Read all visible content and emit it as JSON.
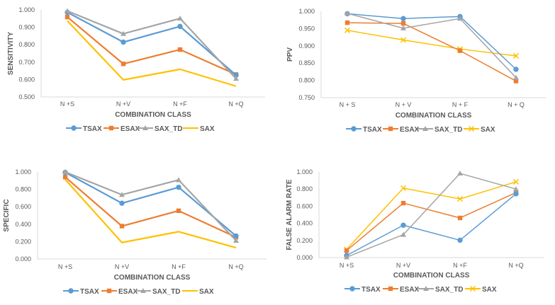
{
  "colors": {
    "TSAX": "#5B9BD5",
    "ESAX": "#ED7D31",
    "SAX_TD": "#A5A5A5",
    "SAX": "#FFC000",
    "axis": "#D9D9D9",
    "text": "#595959"
  },
  "chart_data": [
    {
      "id": "sensitivity",
      "type": "line",
      "title": "",
      "xlabel": "COMBINATION CLASS",
      "ylabel": "SENSITIVITY",
      "categories": [
        "N +S",
        "N +V",
        "N +F",
        "N +Q"
      ],
      "ylim": [
        0.5,
        1.0
      ],
      "yticks": [
        0.5,
        0.6,
        0.7,
        0.8,
        0.9,
        1.0
      ],
      "ytick_labels": [
        "0.500",
        "0.600",
        "0.700",
        "0.800",
        "0.900",
        "1.000"
      ],
      "grid": false,
      "legend": "bottom",
      "series": [
        {
          "name": "TSAX",
          "marker": "circle",
          "values": [
            0.986,
            0.815,
            0.905,
            0.625
          ]
        },
        {
          "name": "ESAX",
          "marker": "square",
          "values": [
            0.959,
            0.69,
            0.772,
            0.629
          ]
        },
        {
          "name": "SAX_TD",
          "marker": "triangle",
          "values": [
            0.994,
            0.863,
            0.951,
            0.605
          ]
        },
        {
          "name": "SAX",
          "marker": "none",
          "values": [
            0.937,
            0.598,
            0.659,
            0.562
          ]
        }
      ]
    },
    {
      "id": "ppv",
      "type": "line",
      "title": "",
      "xlabel": "COMBINATION CLASS",
      "ylabel": "PPV",
      "categories": [
        "N + S",
        "N + V",
        "N + F",
        "N + Q"
      ],
      "ylim": [
        0.75,
        1.0
      ],
      "yticks": [
        0.75,
        0.8,
        0.85,
        0.9,
        0.95,
        1.0
      ],
      "ytick_labels": [
        "0.750",
        "0.800",
        "0.850",
        "0.900",
        "0.950",
        "1.000"
      ],
      "grid": false,
      "legend": "bottom",
      "series": [
        {
          "name": "TSAX",
          "marker": "circle",
          "values": [
            0.993,
            0.979,
            0.985,
            0.832
          ]
        },
        {
          "name": "ESAX",
          "marker": "square",
          "values": [
            0.967,
            0.965,
            0.886,
            0.798
          ]
        },
        {
          "name": "SAX_TD",
          "marker": "triangle",
          "values": [
            0.994,
            0.951,
            0.979,
            0.808
          ]
        },
        {
          "name": "SAX",
          "marker": "x",
          "values": [
            0.945,
            0.917,
            0.891,
            0.871
          ]
        }
      ]
    },
    {
      "id": "specific",
      "type": "line",
      "title": "",
      "xlabel": "COMBINATION CLASS",
      "ylabel": "SPECIFIC",
      "categories": [
        "N +S",
        "N +V",
        "N +F",
        "N +Q"
      ],
      "ylim": [
        0.0,
        1.0
      ],
      "yticks": [
        0.0,
        0.2,
        0.4,
        0.6,
        0.8,
        1.0
      ],
      "ytick_labels": [
        "0.000",
        "0.200",
        "0.400",
        "0.600",
        "0.800",
        "1.000"
      ],
      "grid": false,
      "legend": "bottom",
      "series": [
        {
          "name": "TSAX",
          "marker": "circle",
          "values": [
            0.995,
            0.641,
            0.824,
            0.265
          ]
        },
        {
          "name": "ESAX",
          "marker": "square",
          "values": [
            0.941,
            0.378,
            0.554,
            0.251
          ]
        },
        {
          "name": "SAX_TD",
          "marker": "triangle",
          "values": [
            1.0,
            0.738,
            0.908,
            0.211
          ]
        },
        {
          "name": "SAX",
          "marker": "none",
          "values": [
            0.914,
            0.189,
            0.314,
            0.13
          ]
        }
      ]
    },
    {
      "id": "false_alarm_rate",
      "type": "line",
      "title": "",
      "xlabel": "COMBINATION CLASS",
      "ylabel": "FALSE ALARM RATE",
      "categories": [
        "N +S",
        "N +V",
        "N +F",
        "N +Q"
      ],
      "ylim": [
        0.0,
        1.0
      ],
      "yticks": [
        0.0,
        0.2,
        0.4,
        0.6,
        0.8,
        1.0
      ],
      "ytick_labels": [
        "0.000",
        "0.200",
        "0.400",
        "0.600",
        "0.800",
        "1.000"
      ],
      "grid": false,
      "legend": "bottom",
      "series": [
        {
          "name": "TSAX",
          "marker": "circle",
          "values": [
            0.025,
            0.378,
            0.203,
            0.745
          ]
        },
        {
          "name": "ESAX",
          "marker": "square",
          "values": [
            0.082,
            0.636,
            0.463,
            0.759
          ]
        },
        {
          "name": "SAX_TD",
          "marker": "triangle",
          "values": [
            0.005,
            0.268,
            0.983,
            0.8
          ]
        },
        {
          "name": "SAX",
          "marker": "x",
          "values": [
            0.096,
            0.811,
            0.685,
            0.885
          ]
        }
      ]
    }
  ]
}
